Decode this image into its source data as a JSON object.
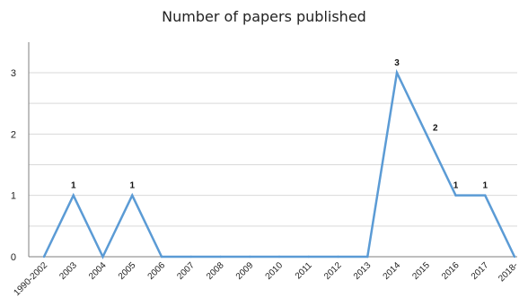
{
  "chart_data": {
    "type": "line",
    "title": "Number of papers published",
    "xlabel": "",
    "ylabel": "",
    "categories": [
      "1990-2002",
      "2003",
      "2004",
      "2005",
      "2006",
      "2007",
      "2008",
      "2009",
      "2010",
      "2011",
      "2012",
      "2013",
      "2014",
      "2015",
      "2016",
      "2017",
      "2018-"
    ],
    "series": [
      {
        "values": [
          0,
          1,
          0,
          1,
          0,
          0,
          0,
          0,
          0,
          0,
          0,
          0,
          3,
          2,
          1,
          1,
          0
        ]
      }
    ],
    "data_labels": [
      null,
      "1",
      null,
      "1",
      null,
      null,
      null,
      null,
      null,
      null,
      null,
      null,
      "3",
      "2",
      "1",
      "1",
      null
    ],
    "ylim": [
      0,
      3
    ],
    "yticks": [
      "0",
      "1",
      "2",
      "3"
    ],
    "grid": true,
    "line_color": "#5b9bd5",
    "grid_color": "#d9d9d9"
  }
}
